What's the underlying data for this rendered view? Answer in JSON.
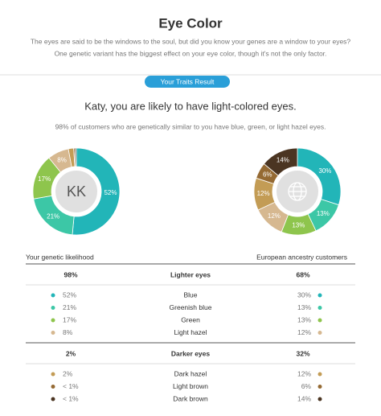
{
  "header": {
    "title": "Eye Color",
    "description": [
      "The eyes are said to be the windows to the soul, but did you know your genes are a window to your eyes?",
      "One genetic variant has the biggest effect on your eye color, though it's not the only factor."
    ]
  },
  "result_tab": "Your Traits Result",
  "headline": "Katy, you are likely to have light-colored eyes.",
  "subheadline": "98% of customers who are genetically similar to you have blue, green, or light hazel eyes.",
  "chart_data": [
    {
      "type": "donut",
      "center_label": "KK",
      "values": [
        52,
        21,
        17,
        8,
        2,
        0.5,
        0.5
      ],
      "value_labels": [
        "52%",
        "21%",
        "17%",
        "8%",
        null,
        null,
        null
      ],
      "colors": [
        "#22b5b8",
        "#3cc7a6",
        "#8ec54d",
        "#d6b890",
        "#c39c55",
        "#956a33",
        "#4b3522"
      ]
    },
    {
      "type": "donut",
      "values": [
        30,
        13,
        13,
        12,
        12,
        6,
        14
      ],
      "value_labels": [
        "30%",
        "13%",
        "13%",
        "12%",
        "12%",
        "6%",
        "14%"
      ],
      "colors": [
        "#22b5b8",
        "#3cc7a6",
        "#8ec54d",
        "#d6b890",
        "#c39c55",
        "#956a33",
        "#4b3522"
      ]
    }
  ],
  "table": {
    "columns": [
      "Your genetic likelihood",
      "European ancestry customers"
    ],
    "groups": [
      {
        "left": "98%",
        "name": "Lighter eyes",
        "right": "68%",
        "rows": [
          [
            "52%",
            "Blue",
            "30%"
          ],
          [
            "21%",
            "Greenish blue",
            "13%"
          ],
          [
            "17%",
            "Green",
            "13%"
          ],
          [
            "8%",
            "Light hazel",
            "12%"
          ]
        ]
      },
      {
        "left": "2%",
        "name": "Darker eyes",
        "right": "32%",
        "rows": [
          [
            "2%",
            "Dark hazel",
            "12%"
          ],
          [
            "< 1%",
            "Light brown",
            "6%"
          ],
          [
            "< 1%",
            "Dark brown",
            "14%"
          ]
        ]
      }
    ]
  }
}
